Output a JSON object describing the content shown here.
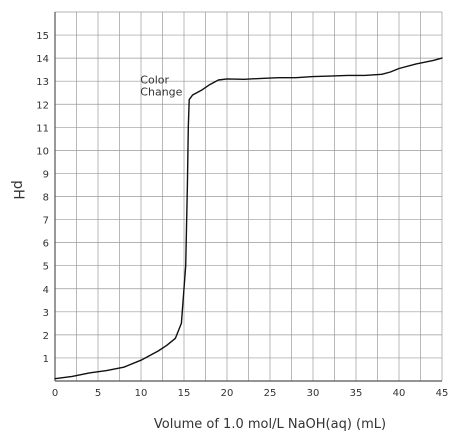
{
  "chart_data": {
    "type": "line",
    "title": "",
    "xlabel": "Volume of 1.0 mol/L NaOH(aq) (mL)",
    "ylabel": "pH",
    "xlim": [
      0,
      45
    ],
    "ylim": [
      0,
      16
    ],
    "x_ticks": [
      "0",
      "5",
      "10",
      "15",
      "20",
      "25",
      "30",
      "35",
      "40",
      "45"
    ],
    "y_ticks": [
      "1",
      "2",
      "3",
      "4",
      "5",
      "6",
      "7",
      "8",
      "9",
      "10",
      "11",
      "12",
      "13",
      "14",
      "15"
    ],
    "grid": true,
    "series": [
      {
        "name": "",
        "x": [
          0,
          2,
          4,
          6,
          8,
          10,
          11,
          12,
          13,
          14,
          14.7,
          15.2,
          15.4,
          15.5,
          15.6,
          15.8,
          16,
          17,
          18,
          19,
          20,
          22,
          24,
          26,
          28,
          30,
          32,
          34,
          36,
          38,
          39,
          40,
          42,
          44,
          45
        ],
        "y": [
          0.1,
          0.2,
          0.35,
          0.45,
          0.6,
          0.9,
          1.1,
          1.3,
          1.55,
          1.85,
          2.5,
          5.0,
          8.5,
          11.0,
          12.2,
          12.3,
          12.4,
          12.6,
          12.85,
          13.05,
          13.1,
          13.08,
          13.12,
          13.15,
          13.15,
          13.2,
          13.22,
          13.25,
          13.25,
          13.3,
          13.4,
          13.55,
          13.75,
          13.9,
          14.0
        ]
      }
    ],
    "annotations": [
      {
        "text": "Color\nChange",
        "x": 15.5,
        "y": 12.2
      }
    ]
  }
}
